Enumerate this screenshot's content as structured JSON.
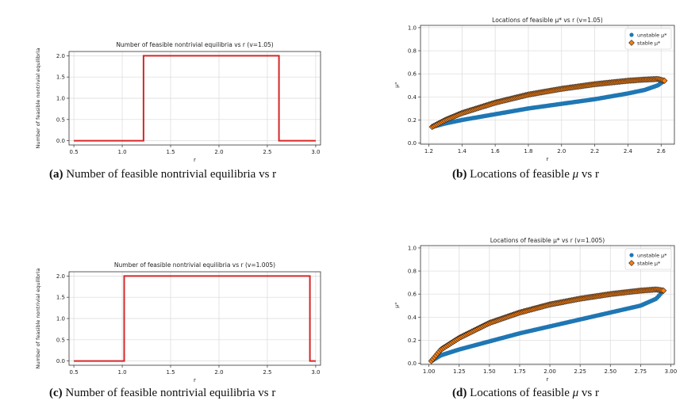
{
  "captions": [
    {
      "tag": "(a)",
      "text": "Number of feasible nontrivial equilibria vs r"
    },
    {
      "tag": "(b)",
      "pre": "Locations of feasible ",
      "sym": "μ",
      "post": " vs r"
    },
    {
      "tag": "(c)",
      "text": "Number of feasible nontrivial equilibria vs r"
    },
    {
      "tag": "(d)",
      "pre": "Locations of feasible ",
      "sym": "μ",
      "post": " vs r"
    }
  ],
  "chart_data": [
    {
      "type": "line",
      "title": "Number of feasible nontrivial equilibria vs r  (v=1.05)",
      "xlabel": "r",
      "ylabel": "Number of feasible nontrivial equilibria",
      "xlim": [
        0.45,
        3.05
      ],
      "ylim": [
        -0.1,
        2.1
      ],
      "xticks": [
        0.5,
        1.0,
        1.5,
        2.0,
        2.5,
        3.0
      ],
      "xtick_labels": [
        "0.5",
        "1.0",
        "1.5",
        "2.0",
        "2.5",
        "3.0"
      ],
      "yticks": [
        0.0,
        0.5,
        1.0,
        1.5,
        2.0
      ],
      "ytick_labels": [
        "0.0",
        "0.5",
        "1.0",
        "1.5",
        "2.0"
      ],
      "grid": true,
      "color": "#d62728",
      "x": [
        0.5,
        1.22,
        1.22,
        2.62,
        2.62,
        3.0
      ],
      "y": [
        0,
        0,
        2,
        2,
        0,
        0
      ]
    },
    {
      "type": "scatter",
      "title": "Locations of feasible μ* vs r  (v=1.05)",
      "xlabel": "r",
      "ylabel": "μ*",
      "xlim": [
        1.15,
        2.68
      ],
      "ylim": [
        -0.01,
        1.02
      ],
      "xticks": [
        1.2,
        1.4,
        1.6,
        1.8,
        2.0,
        2.2,
        2.4,
        2.6
      ],
      "xtick_labels": [
        "1.2",
        "1.4",
        "1.6",
        "1.8",
        "2.0",
        "2.2",
        "2.4",
        "2.6"
      ],
      "yticks": [
        0.0,
        0.2,
        0.4,
        0.6,
        0.8,
        1.0
      ],
      "ytick_labels": [
        "0.0",
        "0.2",
        "0.4",
        "0.6",
        "0.8",
        "1.0"
      ],
      "grid": true,
      "legend_position": "top-right",
      "series": [
        {
          "name": "unstable μ*",
          "color": "#1f77b4",
          "marker": "circle",
          "x": [
            1.22,
            1.3,
            1.4,
            1.6,
            1.8,
            2.0,
            2.2,
            2.4,
            2.5,
            2.58,
            2.62
          ],
          "y": [
            0.14,
            0.17,
            0.2,
            0.25,
            0.3,
            0.34,
            0.38,
            0.43,
            0.46,
            0.5,
            0.54
          ]
        },
        {
          "name": "stable μ*",
          "color": "#ff7f0e",
          "marker": "diamond",
          "x": [
            1.22,
            1.3,
            1.4,
            1.6,
            1.8,
            2.0,
            2.2,
            2.4,
            2.5,
            2.58,
            2.62
          ],
          "y": [
            0.14,
            0.2,
            0.26,
            0.35,
            0.42,
            0.47,
            0.51,
            0.54,
            0.55,
            0.555,
            0.54
          ]
        }
      ]
    },
    {
      "type": "line",
      "title": "Number of feasible nontrivial equilibria vs r  (v=1.005)",
      "xlabel": "r",
      "ylabel": "Number of feasible nontrivial equilibria",
      "xlim": [
        0.45,
        3.05
      ],
      "ylim": [
        -0.1,
        2.1
      ],
      "xticks": [
        0.5,
        1.0,
        1.5,
        2.0,
        2.5,
        3.0
      ],
      "xtick_labels": [
        "0.5",
        "1.0",
        "1.5",
        "2.0",
        "2.5",
        "3.0"
      ],
      "yticks": [
        0.0,
        0.5,
        1.0,
        1.5,
        2.0
      ],
      "ytick_labels": [
        "0.0",
        "0.5",
        "1.0",
        "1.5",
        "2.0"
      ],
      "grid": true,
      "color": "#d62728",
      "x": [
        0.5,
        1.02,
        1.02,
        2.94,
        2.94,
        3.0
      ],
      "y": [
        0,
        0,
        2,
        2,
        0,
        0
      ]
    },
    {
      "type": "scatter",
      "title": "Locations of feasible μ* vs r  (v=1.005)",
      "xlabel": "r",
      "ylabel": "μ*",
      "xlim": [
        0.93,
        3.03
      ],
      "ylim": [
        -0.01,
        1.02
      ],
      "xticks": [
        1.0,
        1.25,
        1.5,
        1.75,
        2.0,
        2.25,
        2.5,
        2.75,
        3.0
      ],
      "xtick_labels": [
        "1.00",
        "1.25",
        "1.50",
        "1.75",
        "2.00",
        "2.25",
        "2.50",
        "2.75",
        "3.00"
      ],
      "yticks": [
        0.0,
        0.2,
        0.4,
        0.6,
        0.8,
        1.0
      ],
      "ytick_labels": [
        "0.0",
        "0.2",
        "0.4",
        "0.6",
        "0.8",
        "1.0"
      ],
      "grid": true,
      "legend_position": "top-right",
      "series": [
        {
          "name": "unstable μ*",
          "color": "#1f77b4",
          "marker": "circle",
          "x": [
            1.02,
            1.1,
            1.25,
            1.5,
            1.75,
            2.0,
            2.25,
            2.5,
            2.75,
            2.88,
            2.94
          ],
          "y": [
            0.02,
            0.07,
            0.12,
            0.19,
            0.26,
            0.32,
            0.38,
            0.44,
            0.5,
            0.56,
            0.63
          ]
        },
        {
          "name": "stable μ*",
          "color": "#ff7f0e",
          "marker": "diamond",
          "x": [
            1.02,
            1.1,
            1.25,
            1.5,
            1.75,
            2.0,
            2.25,
            2.5,
            2.75,
            2.88,
            2.94
          ],
          "y": [
            0.02,
            0.12,
            0.22,
            0.35,
            0.44,
            0.51,
            0.56,
            0.6,
            0.63,
            0.64,
            0.63
          ]
        }
      ]
    }
  ]
}
